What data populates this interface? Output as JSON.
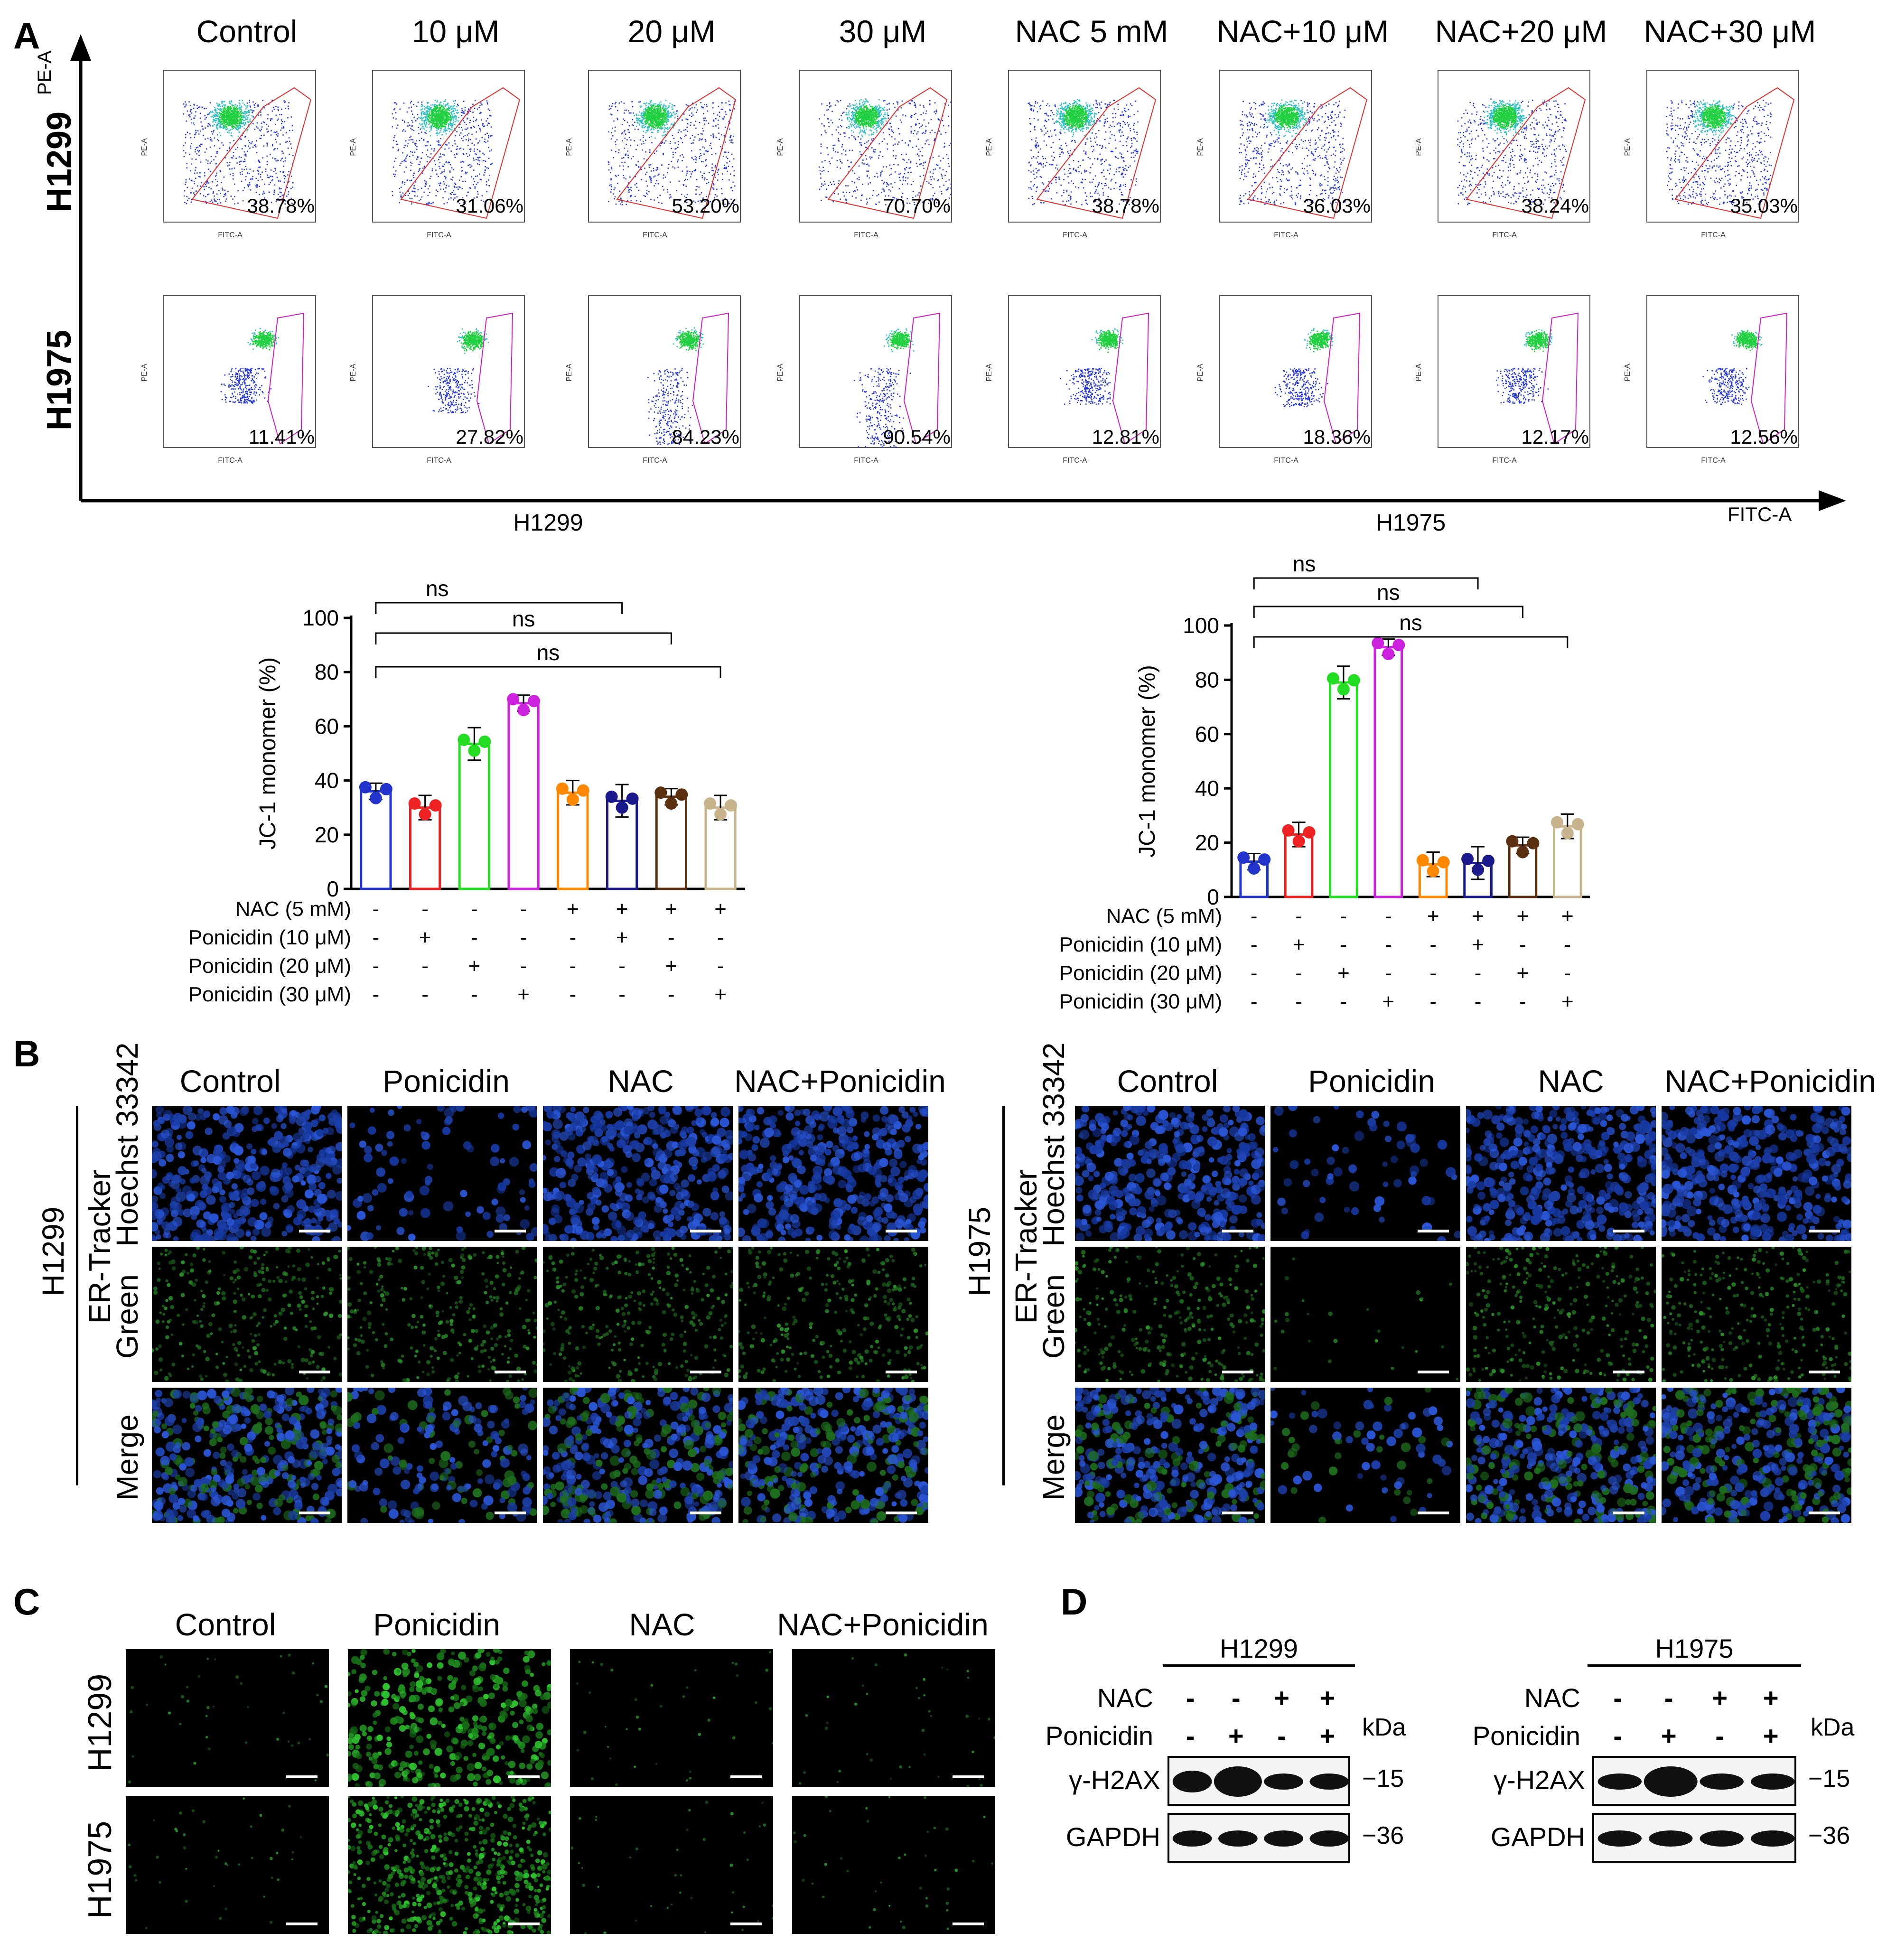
{
  "panel_labels": [
    "A",
    "B",
    "C",
    "D"
  ],
  "panelA": {
    "columns": [
      "Control",
      "10 μM",
      "20 μM",
      "30 μM",
      "NAC 5 mM",
      "NAC+10 μM",
      "NAC+20 μM",
      "NAC+30 μM"
    ],
    "rows": [
      "H1299",
      "H1975"
    ],
    "y_axis": "PE-A",
    "x_axis": "FITC-A",
    "percentages": {
      "H1299": [
        "38.78%",
        "31.06%",
        "53.20%",
        "70.70%",
        "38.78%",
        "36.03%",
        "38.24%",
        "35.03%"
      ],
      "H1975": [
        "11.41%",
        "27.82%",
        "84.23%",
        "90.54%",
        "12.81%",
        "18.36%",
        "12.17%",
        "12.56%"
      ]
    }
  },
  "chart_data": [
    {
      "type": "bar",
      "title": "H1299",
      "ylabel": "JC-1 monomer (%)",
      "ylim": [
        0,
        100
      ],
      "yticks": [
        "0",
        "20",
        "40",
        "60",
        "80",
        "100"
      ],
      "values": [
        36,
        30,
        53.5,
        68.5,
        35.5,
        32.5,
        34,
        30
      ],
      "colors": [
        "#2233cc",
        "#ee2222",
        "#22dd22",
        "#cc22dd",
        "#ff8800",
        "#1a1a8c",
        "#5a3010",
        "#c8b48c"
      ],
      "significance": [
        "ns",
        "ns",
        "ns"
      ],
      "treatment_rows": [
        {
          "label": "NAC (5 mM)",
          "signs": [
            "-",
            "-",
            "-",
            "-",
            "+",
            "+",
            "+",
            "+"
          ]
        },
        {
          "label": "Ponicidin (10 μM)",
          "signs": [
            "-",
            "+",
            "-",
            "-",
            "-",
            "+",
            "-",
            "-"
          ]
        },
        {
          "label": "Ponicidin (20 μM)",
          "signs": [
            "-",
            "-",
            "+",
            "-",
            "-",
            "-",
            "+",
            "-"
          ]
        },
        {
          "label": "Ponicidin (30 μM)",
          "signs": [
            "-",
            "-",
            "-",
            "+",
            "-",
            "-",
            "-",
            "+"
          ]
        }
      ]
    },
    {
      "type": "bar",
      "title": "H1975",
      "ylabel": "JC-1 monomer (%)",
      "ylim": [
        0,
        100
      ],
      "yticks": [
        "0",
        "20",
        "40",
        "60",
        "80",
        "100"
      ],
      "values": [
        13,
        23,
        79,
        92,
        12,
        12.5,
        19,
        26
      ],
      "colors": [
        "#2233cc",
        "#ee2222",
        "#22dd22",
        "#cc22dd",
        "#ff8800",
        "#1a1a8c",
        "#5a3010",
        "#c8b48c"
      ],
      "significance": [
        "ns",
        "ns",
        "ns"
      ],
      "treatment_rows": [
        {
          "label": "NAC (5 mM)",
          "signs": [
            "-",
            "-",
            "-",
            "-",
            "+",
            "+",
            "+",
            "+"
          ]
        },
        {
          "label": "Ponicidin (10 μM)",
          "signs": [
            "-",
            "+",
            "-",
            "-",
            "-",
            "+",
            "-",
            "-"
          ]
        },
        {
          "label": "Ponicidin (20 μM)",
          "signs": [
            "-",
            "-",
            "+",
            "-",
            "-",
            "-",
            "+",
            "-"
          ]
        },
        {
          "label": "Ponicidin (30 μM)",
          "signs": [
            "-",
            "-",
            "-",
            "+",
            "-",
            "-",
            "-",
            "+"
          ]
        }
      ]
    }
  ],
  "panelB": {
    "columns": [
      "Control",
      "Ponicidin",
      "NAC",
      "NAC+Ponicidin"
    ],
    "cells": [
      "H1299",
      "H1975"
    ],
    "group_label": "ER-Tracker",
    "rows": [
      "Hoechst 33342",
      "Green",
      "Merge"
    ]
  },
  "panelC": {
    "columns": [
      "Control",
      "Ponicidin",
      "NAC",
      "NAC+Ponicidin"
    ],
    "rows": [
      "H1299",
      "H1975"
    ]
  },
  "panelD": {
    "blots": [
      {
        "cell": "H1299",
        "nac": [
          "-",
          "-",
          "+",
          "+"
        ],
        "ponicidin": [
          "-",
          "+",
          "-",
          "+"
        ]
      },
      {
        "cell": "H1975",
        "nac": [
          "-",
          "-",
          "+",
          "+"
        ],
        "ponicidin": [
          "-",
          "+",
          "-",
          "+"
        ]
      }
    ],
    "row_labels": [
      "NAC",
      "Ponicidin"
    ],
    "kda_label": "kDa",
    "bands": [
      {
        "name": "γ-H2AX",
        "kda": "−15"
      },
      {
        "name": "GAPDH",
        "kda": "−36"
      }
    ]
  }
}
